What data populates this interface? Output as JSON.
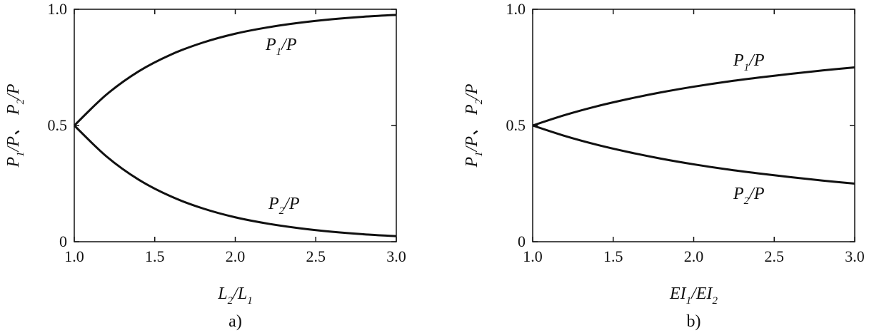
{
  "chart_data": [
    {
      "type": "line",
      "panel_label": "a)",
      "xlabel": {
        "base": "L",
        "sub": "2",
        "sep": "/",
        "base2": "L",
        "sub2": "1"
      },
      "ylabel": {
        "parts": [
          "P",
          "1",
          "/P、 P",
          "2",
          "/P"
        ]
      },
      "xlim": [
        1.0,
        3.0
      ],
      "ylim": [
        0,
        1.0
      ],
      "x_ticks": [
        "1.0",
        "1.5",
        "2.0",
        "2.5",
        "3.0"
      ],
      "y_ticks": [
        "0",
        "0.5",
        "1.0"
      ],
      "x": [
        1.0,
        1.2,
        1.4,
        1.6,
        1.8,
        2.0,
        2.2,
        2.4,
        2.6,
        2.8,
        3.0
      ],
      "series": [
        {
          "name": "P1/P",
          "label": {
            "base": "P",
            "sub": "1",
            "rest": "/P"
          },
          "values": [
            0.5,
            0.633,
            0.733,
            0.805,
            0.857,
            0.895,
            0.922,
            0.942,
            0.957,
            0.968,
            0.976
          ]
        },
        {
          "name": "P2/P",
          "label": {
            "base": "P",
            "sub": "2",
            "rest": "/P"
          },
          "values": [
            0.5,
            0.367,
            0.267,
            0.195,
            0.143,
            0.105,
            0.078,
            0.058,
            0.043,
            0.032,
            0.024
          ]
        }
      ]
    },
    {
      "type": "line",
      "panel_label": "b)",
      "xlabel": {
        "base": "EI",
        "sub": "1",
        "sep": "/",
        "base2": "EI",
        "sub2": "2"
      },
      "ylabel": {
        "parts": [
          "P",
          "1",
          "/P、 P",
          "2",
          "/P"
        ]
      },
      "xlim": [
        1.0,
        3.0
      ],
      "ylim": [
        0,
        1.0
      ],
      "x_ticks": [
        "1.0",
        "1.5",
        "2.0",
        "2.5",
        "3.0"
      ],
      "y_ticks": [
        "0",
        "0.5",
        "1.0"
      ],
      "x": [
        1.0,
        1.2,
        1.4,
        1.6,
        1.8,
        2.0,
        2.2,
        2.4,
        2.6,
        2.8,
        3.0
      ],
      "series": [
        {
          "name": "P1/P",
          "label": {
            "base": "P",
            "sub": "1",
            "rest": "/P"
          },
          "values": [
            0.5,
            0.545,
            0.583,
            0.615,
            0.643,
            0.667,
            0.688,
            0.706,
            0.722,
            0.737,
            0.75
          ]
        },
        {
          "name": "P2/P",
          "label": {
            "base": "P",
            "sub": "2",
            "rest": "/P"
          },
          "values": [
            0.5,
            0.455,
            0.417,
            0.385,
            0.357,
            0.333,
            0.312,
            0.294,
            0.278,
            0.263,
            0.25
          ]
        }
      ]
    }
  ]
}
